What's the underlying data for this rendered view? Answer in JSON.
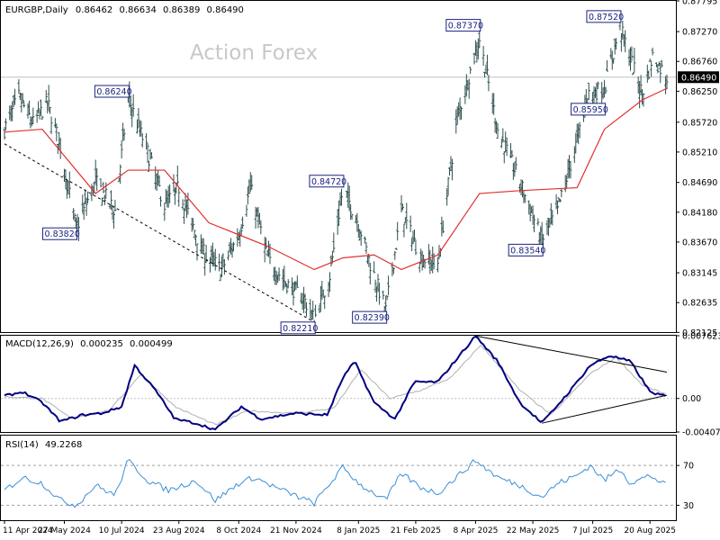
{
  "chart_data": [
    {
      "panel": "price",
      "type": "bar",
      "subtype": "ohlc",
      "title": "EURGBP,Daily",
      "ohlc_values": [
        "0.86462",
        "0.86634",
        "0.86389",
        "0.86490"
      ],
      "watermark": "Action Forex",
      "current_price_label": "0.86490",
      "ylim": [
        0.8213,
        0.87795
      ],
      "y_ticks": [
        "0.87795",
        "0.87270",
        "0.86760",
        "0.86250",
        "0.85720",
        "0.85210",
        "0.84690",
        "0.84180",
        "0.83670",
        "0.83145",
        "0.82635",
        "0.82125"
      ],
      "annotations": [
        {
          "label": "0.86240",
          "date": "2024-07-15",
          "value": 0.8624
        },
        {
          "label": "0.83820",
          "date": "2024-06-05",
          "value": 0.8382
        },
        {
          "label": "0.82210",
          "date": "2024-12-05",
          "value": 0.8221
        },
        {
          "label": "0.84720",
          "date": "2024-12-27",
          "value": 0.8472
        },
        {
          "label": "0.82390",
          "date": "2025-01-29",
          "value": 0.8239
        },
        {
          "label": "0.87370",
          "date": "2025-04-11",
          "value": 0.8737
        },
        {
          "label": "0.83540",
          "date": "2025-05-29",
          "value": 0.8354
        },
        {
          "label": "0.87520",
          "date": "2025-07-28",
          "value": 0.8752
        },
        {
          "label": "0.85950",
          "date": "2025-07-16",
          "value": 0.8595
        }
      ],
      "key_points": [
        {
          "date": "2024-04-11",
          "value": 0.856
        },
        {
          "date": "2024-04-22",
          "value": 0.8615
        },
        {
          "date": "2024-05-03",
          "value": 0.857
        },
        {
          "date": "2024-05-14",
          "value": 0.8605
        },
        {
          "date": "2024-05-24",
          "value": 0.853
        },
        {
          "date": "2024-06-05",
          "value": 0.839
        },
        {
          "date": "2024-06-20",
          "value": 0.847
        },
        {
          "date": "2024-07-05",
          "value": 0.842
        },
        {
          "date": "2024-07-15",
          "value": 0.8615
        },
        {
          "date": "2024-07-30",
          "value": 0.852
        },
        {
          "date": "2024-08-12",
          "value": 0.843
        },
        {
          "date": "2024-08-23",
          "value": 0.846
        },
        {
          "date": "2024-09-10",
          "value": 0.835
        },
        {
          "date": "2024-09-25",
          "value": 0.832
        },
        {
          "date": "2024-10-08",
          "value": 0.838
        },
        {
          "date": "2024-10-17",
          "value": 0.846
        },
        {
          "date": "2024-10-30",
          "value": 0.834
        },
        {
          "date": "2024-11-12",
          "value": 0.83
        },
        {
          "date": "2024-11-27",
          "value": 0.827
        },
        {
          "date": "2024-12-05",
          "value": 0.8235
        },
        {
          "date": "2024-12-17",
          "value": 0.831
        },
        {
          "date": "2024-12-27",
          "value": 0.846
        },
        {
          "date": "2025-01-08",
          "value": 0.84
        },
        {
          "date": "2025-01-17",
          "value": 0.833
        },
        {
          "date": "2025-01-29",
          "value": 0.825
        },
        {
          "date": "2025-02-10",
          "value": 0.842
        },
        {
          "date": "2025-02-25",
          "value": 0.834
        },
        {
          "date": "2025-03-10",
          "value": 0.833
        },
        {
          "date": "2025-03-25",
          "value": 0.858
        },
        {
          "date": "2025-04-11",
          "value": 0.8715
        },
        {
          "date": "2025-04-25",
          "value": 0.856
        },
        {
          "date": "2025-05-12",
          "value": 0.847
        },
        {
          "date": "2025-05-29",
          "value": 0.837
        },
        {
          "date": "2025-06-10",
          "value": 0.842
        },
        {
          "date": "2025-06-25",
          "value": 0.854
        },
        {
          "date": "2025-07-03",
          "value": 0.862
        },
        {
          "date": "2025-07-16",
          "value": 0.863
        },
        {
          "date": "2025-07-28",
          "value": 0.8735
        },
        {
          "date": "2025-08-05",
          "value": 0.868
        },
        {
          "date": "2025-08-14",
          "value": 0.862
        },
        {
          "date": "2025-08-22",
          "value": 0.8685
        },
        {
          "date": "2025-09-02",
          "value": 0.8649
        }
      ],
      "series": [
        {
          "values": [
            {
              "date": "2024-04-11",
              "value": 0.8555
            },
            {
              "date": "2024-05-10",
              "value": 0.856
            },
            {
              "date": "2024-06-20",
              "value": 0.845
            },
            {
              "date": "2024-07-15",
              "value": 0.849
            },
            {
              "date": "2024-08-12",
              "value": 0.849
            },
            {
              "date": "2024-09-15",
              "value": 0.84
            },
            {
              "date": "2024-10-30",
              "value": 0.836
            },
            {
              "date": "2024-12-05",
              "value": 0.832
            },
            {
              "date": "2024-12-27",
              "value": 0.834
            },
            {
              "date": "2025-01-20",
              "value": 0.8345
            },
            {
              "date": "2025-02-10",
              "value": 0.832
            },
            {
              "date": "2025-03-10",
              "value": 0.8345
            },
            {
              "date": "2025-04-11",
              "value": 0.845
            },
            {
              "date": "2025-05-12",
              "value": 0.8455
            },
            {
              "date": "2025-06-25",
              "value": 0.846
            },
            {
              "date": "2025-07-16",
              "value": 0.856
            },
            {
              "date": "2025-08-14",
              "value": 0.861
            },
            {
              "date": "2025-09-02",
              "value": 0.863
            }
          ]
        }
      ],
      "trendlines": [
        {
          "from": {
            "date": "2024-04-11",
            "value": 0.8535
          },
          "to": {
            "date": "2024-12-05",
            "value": 0.823
          }
        }
      ],
      "colors": {
        "bars": "#2f4f4f",
        "moving_average": "#e03030",
        "trendline": "#000000",
        "annotation_box": "#1a237e",
        "watermark": "#c8c8c8"
      }
    },
    {
      "panel": "macd",
      "type": "line",
      "title": "MACD(12,26,9)",
      "values_text": [
        "0.000235",
        "0.000499"
      ],
      "ylim": [
        -0.004073,
        0.007623
      ],
      "y_ticks": [
        "0.007623",
        "0.00",
        "-0.004073"
      ],
      "series": [
        {
          "values": [
            {
              "date": "2024-04-11",
              "value": 0.0003
            },
            {
              "date": "2024-04-25",
              "value": 0.0008
            },
            {
              "date": "2024-05-10",
              "value": -0.0005
            },
            {
              "date": "2024-05-24",
              "value": -0.0028
            },
            {
              "date": "2024-06-10",
              "value": -0.002
            },
            {
              "date": "2024-06-25",
              "value": -0.0018
            },
            {
              "date": "2024-07-10",
              "value": -0.001
            },
            {
              "date": "2024-07-20",
              "value": 0.004
            },
            {
              "date": "2024-08-05",
              "value": 0.001
            },
            {
              "date": "2024-08-20",
              "value": -0.0025
            },
            {
              "date": "2024-09-05",
              "value": -0.003
            },
            {
              "date": "2024-09-20",
              "value": -0.0038
            },
            {
              "date": "2024-10-10",
              "value": -0.001
            },
            {
              "date": "2024-10-25",
              "value": -0.0025
            },
            {
              "date": "2024-11-20",
              "value": -0.0018
            },
            {
              "date": "2024-12-15",
              "value": -0.002
            },
            {
              "date": "2024-12-27",
              "value": 0.0025
            },
            {
              "date": "2025-01-05",
              "value": 0.0045
            },
            {
              "date": "2025-01-20",
              "value": -0.0005
            },
            {
              "date": "2025-02-05",
              "value": -0.0025
            },
            {
              "date": "2025-02-20",
              "value": 0.002
            },
            {
              "date": "2025-03-10",
              "value": 0.002
            },
            {
              "date": "2025-04-08",
              "value": 0.0076
            },
            {
              "date": "2025-04-25",
              "value": 0.0045
            },
            {
              "date": "2025-05-12",
              "value": -0.0005
            },
            {
              "date": "2025-05-29",
              "value": -0.003
            },
            {
              "date": "2025-06-20",
              "value": 0.001
            },
            {
              "date": "2025-07-05",
              "value": 0.004
            },
            {
              "date": "2025-07-20",
              "value": 0.0052
            },
            {
              "date": "2025-08-05",
              "value": 0.0045
            },
            {
              "date": "2025-08-20",
              "value": 0.0008
            },
            {
              "date": "2025-09-02",
              "value": 0.0002
            }
          ]
        },
        {
          "values": [
            {
              "date": "2024-04-11",
              "value": 0.0002
            },
            {
              "date": "2024-05-10",
              "value": 0.0
            },
            {
              "date": "2024-06-01",
              "value": -0.0024
            },
            {
              "date": "2024-07-01",
              "value": -0.0014
            },
            {
              "date": "2024-07-25",
              "value": 0.003
            },
            {
              "date": "2024-08-20",
              "value": -0.001
            },
            {
              "date": "2024-09-20",
              "value": -0.0032
            },
            {
              "date": "2024-10-15",
              "value": -0.0015
            },
            {
              "date": "2024-11-20",
              "value": -0.0018
            },
            {
              "date": "2024-12-20",
              "value": -0.0012
            },
            {
              "date": "2025-01-10",
              "value": 0.0035
            },
            {
              "date": "2025-02-01",
              "value": 0.0
            },
            {
              "date": "2025-02-25",
              "value": 0.001
            },
            {
              "date": "2025-03-20",
              "value": 0.0025
            },
            {
              "date": "2025-04-12",
              "value": 0.0065
            },
            {
              "date": "2025-05-12",
              "value": 0.001
            },
            {
              "date": "2025-06-05",
              "value": -0.002
            },
            {
              "date": "2025-07-05",
              "value": 0.003
            },
            {
              "date": "2025-07-25",
              "value": 0.005
            },
            {
              "date": "2025-08-15",
              "value": 0.0015
            },
            {
              "date": "2025-09-02",
              "value": 0.0005
            }
          ]
        }
      ],
      "trendlines": [
        {
          "from": {
            "date": "2025-04-08",
            "value": 0.0076
          },
          "to": {
            "date": "2025-09-02",
            "value": 0.0032
          }
        },
        {
          "from": {
            "date": "2025-05-29",
            "value": -0.003
          },
          "to": {
            "date": "2025-09-02",
            "value": 0.0004
          }
        }
      ],
      "colors": {
        "macd": "#000080",
        "signal": "#b0b0b0",
        "trendline": "#000000",
        "zero_line": "#c0c0c0"
      }
    },
    {
      "panel": "rsi",
      "type": "line",
      "title": "RSI(14)",
      "values_text": [
        "49.2268"
      ],
      "ylim": [
        15,
        100
      ],
      "y_ticks": [
        "70",
        "30"
      ],
      "series": [
        {
          "values": [
            {
              "date": "2024-04-11",
              "value": 45
            },
            {
              "date": "2024-04-25",
              "value": 58
            },
            {
              "date": "2024-05-10",
              "value": 52
            },
            {
              "date": "2024-05-24",
              "value": 35
            },
            {
              "date": "2024-06-05",
              "value": 30
            },
            {
              "date": "2024-06-20",
              "value": 50
            },
            {
              "date": "2024-07-05",
              "value": 40
            },
            {
              "date": "2024-07-15",
              "value": 75
            },
            {
              "date": "2024-07-30",
              "value": 55
            },
            {
              "date": "2024-08-15",
              "value": 45
            },
            {
              "date": "2024-09-05",
              "value": 55
            },
            {
              "date": "2024-09-20",
              "value": 35
            },
            {
              "date": "2024-10-08",
              "value": 52
            },
            {
              "date": "2024-10-20",
              "value": 58
            },
            {
              "date": "2024-11-05",
              "value": 48
            },
            {
              "date": "2024-11-20",
              "value": 40
            },
            {
              "date": "2024-12-05",
              "value": 32
            },
            {
              "date": "2024-12-27",
              "value": 68
            },
            {
              "date": "2025-01-10",
              "value": 50
            },
            {
              "date": "2025-01-29",
              "value": 35
            },
            {
              "date": "2025-02-10",
              "value": 62
            },
            {
              "date": "2025-02-25",
              "value": 48
            },
            {
              "date": "2025-03-10",
              "value": 42
            },
            {
              "date": "2025-04-08",
              "value": 75
            },
            {
              "date": "2025-04-25",
              "value": 58
            },
            {
              "date": "2025-05-12",
              "value": 50
            },
            {
              "date": "2025-05-29",
              "value": 38
            },
            {
              "date": "2025-06-10",
              "value": 52
            },
            {
              "date": "2025-06-25",
              "value": 60
            },
            {
              "date": "2025-07-05",
              "value": 70
            },
            {
              "date": "2025-07-16",
              "value": 55
            },
            {
              "date": "2025-07-28",
              "value": 67
            },
            {
              "date": "2025-08-05",
              "value": 52
            },
            {
              "date": "2025-08-20",
              "value": 60
            },
            {
              "date": "2025-09-02",
              "value": 49.2
            }
          ]
        }
      ],
      "colors": {
        "rsi": "#3a8fd8",
        "levels": "#a0a0a0"
      }
    }
  ],
  "x_axis": {
    "start_date": "2024-04-11",
    "end_date": "2025-09-02",
    "ticks": [
      {
        "label": "11 Apr 2024",
        "date": "2024-04-11"
      },
      {
        "label": "27 May 2024",
        "date": "2024-05-27"
      },
      {
        "label": "10 Jul 2024",
        "date": "2024-07-10"
      },
      {
        "label": "23 Aug 2024",
        "date": "2024-08-23"
      },
      {
        "label": "8 Oct 2024",
        "date": "2024-10-08"
      },
      {
        "label": "21 Nov 2024",
        "date": "2024-11-21"
      },
      {
        "label": "8 Jan 2025",
        "date": "2025-01-08"
      },
      {
        "label": "21 Feb 2025",
        "date": "2025-02-21"
      },
      {
        "label": "8 Apr 2025",
        "date": "2025-04-08"
      },
      {
        "label": "22 May 2025",
        "date": "2025-05-22"
      },
      {
        "label": "7 Jul 2025",
        "date": "2025-07-07"
      },
      {
        "label": "20 Aug 2025",
        "date": "2025-08-20"
      }
    ]
  }
}
